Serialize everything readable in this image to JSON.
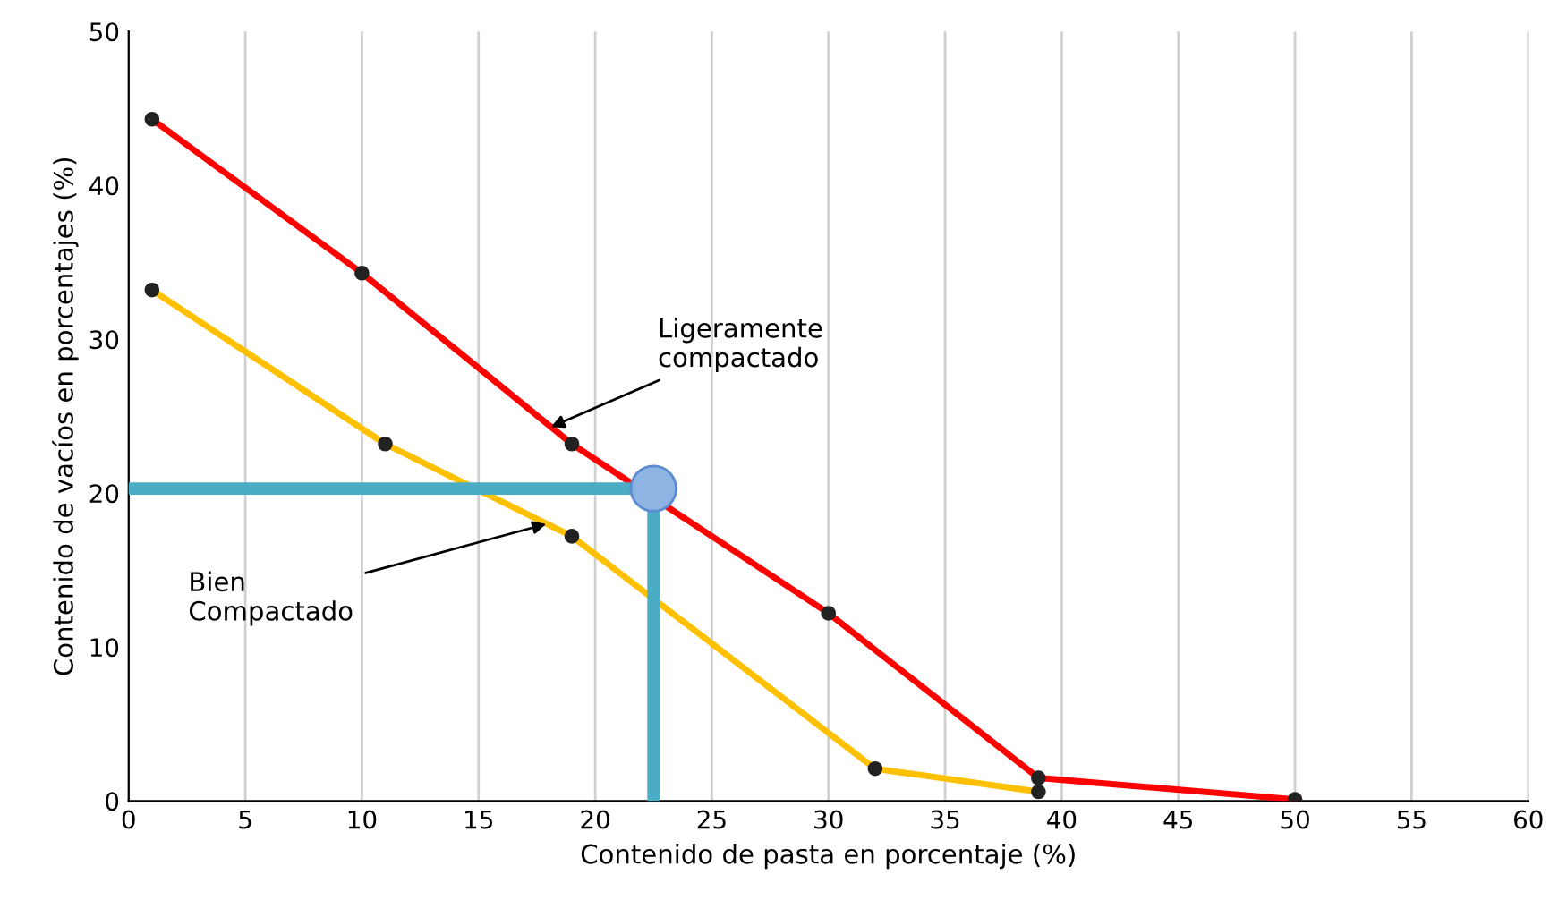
{
  "chart_data": {
    "type": "line",
    "xlabel": "Contenido de pasta en porcentaje (%)",
    "ylabel": "Contenido de vacíos en porcentajes (%)",
    "xlim": [
      0,
      60
    ],
    "ylim": [
      0,
      50
    ],
    "xticks": [
      0,
      5,
      10,
      15,
      20,
      25,
      30,
      35,
      40,
      45,
      50,
      55,
      60
    ],
    "yticks": [
      0,
      10,
      20,
      30,
      40,
      50
    ],
    "grid": "x",
    "marker": "circle",
    "line_style": "solid",
    "legend": false,
    "series": [
      {
        "color": "#ff0000",
        "x": [
          1,
          10,
          19,
          30,
          39,
          50
        ],
        "values": [
          44.3,
          34.3,
          23.2,
          12.2,
          1.5,
          0.1
        ]
      },
      {
        "color": "#ffc000",
        "x": [
          1,
          11,
          19,
          32,
          39
        ],
        "values": [
          33.2,
          23.2,
          17.2,
          2.1,
          0.6
        ]
      },
      {
        "type": "line",
        "marker": "none",
        "color": "#4bacc6",
        "x": [
          0,
          22.5,
          22.5
        ],
        "values": [
          20.3,
          20.3,
          0
        ]
      },
      {
        "type": "scatter",
        "color": "#8eb4e3",
        "x": [
          22.5
        ],
        "values": [
          20.3
        ]
      }
    ],
    "annotations": [
      {
        "text": "Ligeramente\ncompactado",
        "x": 18.1,
        "y": 24.3
      },
      {
        "text": "Bien\nCompactado",
        "x": 17.9,
        "y": 18.0
      }
    ]
  }
}
